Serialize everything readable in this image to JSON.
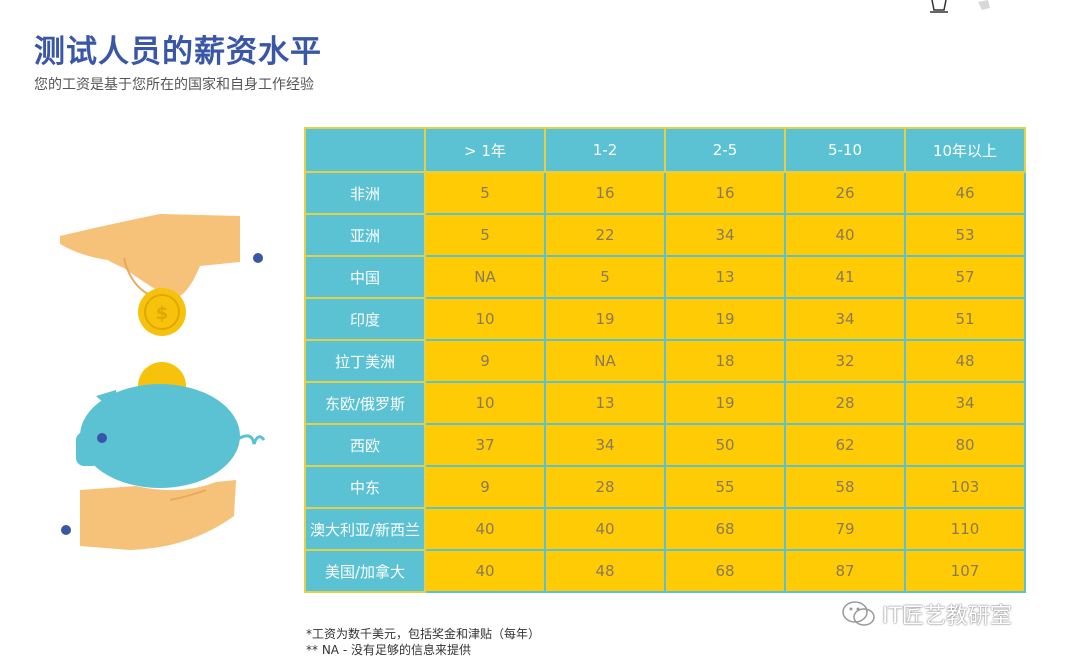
{
  "title": "测试人员的薪资水平",
  "subtitle": "您的工资是基于您所在的国家和自身工作经验",
  "table": {
    "headers": [
      "",
      "> 1年",
      "1-2",
      "2-5",
      "5-10",
      "10年以上"
    ],
    "rows": [
      {
        "region": "非洲",
        "values": [
          "5",
          "16",
          "16",
          "26",
          "46"
        ]
      },
      {
        "region": "亚洲",
        "values": [
          "5",
          "22",
          "34",
          "40",
          "53"
        ]
      },
      {
        "region": "中国",
        "values": [
          "NA",
          "5",
          "13",
          "41",
          "57"
        ]
      },
      {
        "region": "印度",
        "values": [
          "10",
          "19",
          "19",
          "34",
          "51"
        ]
      },
      {
        "region": "拉丁美洲",
        "values": [
          "9",
          "NA",
          "18",
          "32",
          "48"
        ]
      },
      {
        "region": "东欧/俄罗斯",
        "values": [
          "10",
          "13",
          "19",
          "28",
          "34"
        ]
      },
      {
        "region": "西欧",
        "values": [
          "37",
          "34",
          "50",
          "62",
          "80"
        ]
      },
      {
        "region": "中东",
        "values": [
          "9",
          "28",
          "55",
          "58",
          "103"
        ]
      },
      {
        "region": "澳大利亚/新西兰",
        "values": [
          "40",
          "40",
          "68",
          "79",
          "110"
        ]
      },
      {
        "region": "美国/加拿大",
        "values": [
          "40",
          "48",
          "68",
          "87",
          "107"
        ]
      }
    ]
  },
  "notes": {
    "note1": "*工资为数千美元，包括奖金和津贴（每年）",
    "note2": "** NA - 没有足够的信息来提供"
  },
  "watermark": "IT匠艺教研室",
  "icons": {
    "illustration": "hand-coin-piggy-bank-icon",
    "watermark": "wechat-icon"
  },
  "colors": {
    "title": "#3a56a6",
    "header_bg": "#5bc2d4",
    "cell_bg": "#fecb05",
    "grid_line": "#e2d048"
  }
}
